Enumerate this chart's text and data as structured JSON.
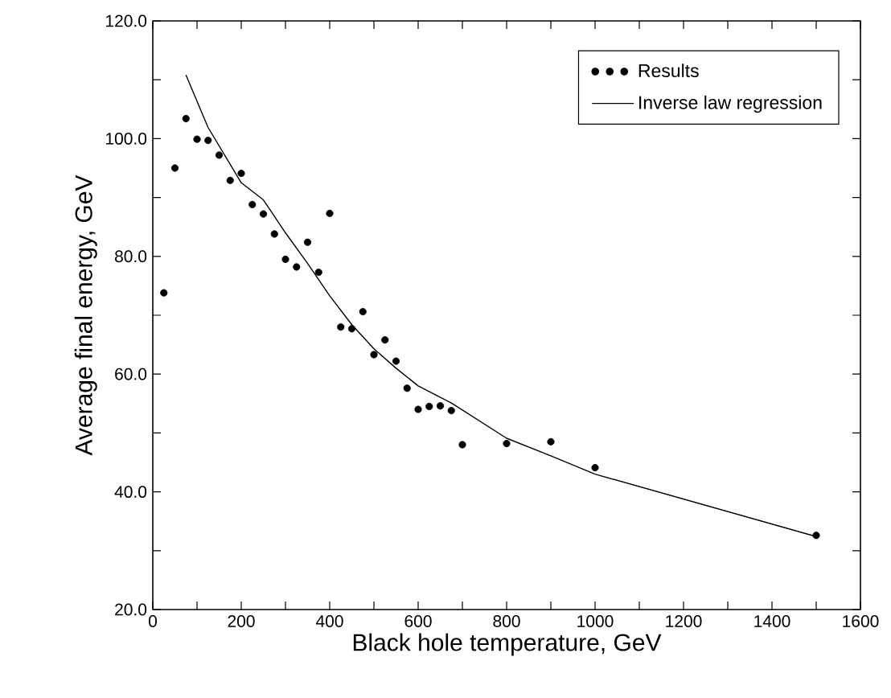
{
  "chart_data": {
    "type": "scatter",
    "xlabel": "Black hole temperature, GeV",
    "ylabel": "Average final energy, GeV",
    "xlim": [
      0,
      1600
    ],
    "ylim": [
      20,
      120
    ],
    "xticks": [
      0,
      {
        "value": 100,
        "label": null
      },
      200,
      {
        "value": 300,
        "label": null
      },
      400,
      {
        "value": 500,
        "label": null
      },
      600,
      {
        "value": 700,
        "label": null
      },
      800,
      {
        "value": 900,
        "label": null
      },
      1000,
      {
        "value": 1100,
        "label": null
      },
      1200,
      {
        "value": 1300,
        "label": null
      },
      1400,
      {
        "value": 1500,
        "label": null
      },
      1600
    ],
    "yticks": [
      {
        "value": 20,
        "label": "20.0"
      },
      {
        "value": 30,
        "label": null
      },
      {
        "value": 40,
        "label": "40.0"
      },
      {
        "value": 50,
        "label": null
      },
      {
        "value": 60,
        "label": "60.0"
      },
      {
        "value": 70,
        "label": null
      },
      {
        "value": 80,
        "label": "80.0"
      },
      {
        "value": 90,
        "label": null
      },
      {
        "value": 100,
        "label": "100.0"
      },
      {
        "value": 110,
        "label": null
      },
      {
        "value": 120,
        "label": "120.0"
      }
    ],
    "grid": false,
    "legend": "top right",
    "series": [
      {
        "name": "Results",
        "marker": "circle",
        "color": "#000000",
        "x": [
          25,
          50,
          75,
          100,
          125,
          150,
          175,
          200,
          225,
          250,
          275,
          300,
          325,
          350,
          375,
          400,
          425,
          450,
          475,
          500,
          525,
          550,
          575,
          600,
          625,
          650,
          675,
          700,
          800,
          900,
          1000,
          1500
        ],
        "values": [
          73.8,
          95.0,
          103.4,
          99.9,
          99.7,
          97.2,
          92.9,
          94.1,
          88.8,
          87.2,
          83.8,
          79.5,
          78.2,
          82.4,
          77.3,
          87.3,
          68.0,
          67.7,
          70.6,
          63.3,
          65.8,
          62.2,
          57.6,
          54.0,
          54.5,
          54.6,
          53.8,
          48.0,
          48.2,
          48.5,
          44.1,
          32.6
        ]
      },
      {
        "name": "Inverse law regression",
        "type": "line",
        "marker": "none",
        "line_style": "solid",
        "color": "#000000",
        "x": [
          75,
          125,
          200,
          250,
          300,
          350,
          400,
          450,
          500,
          550,
          600,
          675,
          800,
          900,
          1000,
          1500
        ],
        "values": [
          110.8,
          101.9,
          92.5,
          89.6,
          84.0,
          78.8,
          73.3,
          68.4,
          64.3,
          61.0,
          58.0,
          55.1,
          49.1,
          46.1,
          43.0,
          32.4
        ]
      }
    ]
  }
}
